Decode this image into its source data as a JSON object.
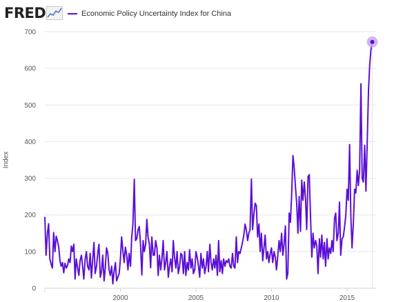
{
  "header": {
    "logo_text": "FRED",
    "logo_icon": "sparkline-icon"
  },
  "colors": {
    "series": "#5b0fd6",
    "endpoint_halo": "#c8a2f0",
    "grid": "#e6e6e6",
    "axis": "#d0d0d0"
  },
  "chart_data": {
    "type": "line",
    "title": "",
    "xlabel": "",
    "ylabel": "Index",
    "legend_position": "top-left",
    "grid": true,
    "xlim": [
      1995.0,
      2016.92
    ],
    "ylim": [
      0,
      700
    ],
    "yticks": [
      0,
      100,
      200,
      300,
      400,
      500,
      600,
      700
    ],
    "xticks": [
      2000,
      2005,
      2010,
      2015
    ],
    "series": [
      {
        "name": "Economic Policy Uncertainty Index for China",
        "values": [
          [
            1995.0,
            193
          ],
          [
            1995.08,
            90
          ],
          [
            1995.17,
            150
          ],
          [
            1995.25,
            176
          ],
          [
            1995.33,
            80
          ],
          [
            1995.42,
            65
          ],
          [
            1995.5,
            55
          ],
          [
            1995.58,
            152
          ],
          [
            1995.67,
            100
          ],
          [
            1995.75,
            142
          ],
          [
            1995.83,
            130
          ],
          [
            1995.92,
            112
          ],
          [
            1996.0,
            75
          ],
          [
            1996.08,
            60
          ],
          [
            1996.17,
            70
          ],
          [
            1996.25,
            42
          ],
          [
            1996.33,
            68
          ],
          [
            1996.42,
            55
          ],
          [
            1996.5,
            62
          ],
          [
            1996.58,
            80
          ],
          [
            1996.67,
            70
          ],
          [
            1996.75,
            115
          ],
          [
            1996.83,
            100
          ],
          [
            1996.92,
            120
          ],
          [
            1997.0,
            25
          ],
          [
            1997.08,
            80
          ],
          [
            1997.17,
            55
          ],
          [
            1997.25,
            35
          ],
          [
            1997.33,
            75
          ],
          [
            1997.42,
            90
          ],
          [
            1997.5,
            60
          ],
          [
            1997.58,
            25
          ],
          [
            1997.67,
            80
          ],
          [
            1997.75,
            100
          ],
          [
            1997.83,
            60
          ],
          [
            1997.92,
            50
          ],
          [
            1998.0,
            95
          ],
          [
            1998.08,
            28
          ],
          [
            1998.17,
            80
          ],
          [
            1998.25,
            125
          ],
          [
            1998.33,
            40
          ],
          [
            1998.42,
            60
          ],
          [
            1998.5,
            95
          ],
          [
            1998.58,
            120
          ],
          [
            1998.67,
            30
          ],
          [
            1998.75,
            45
          ],
          [
            1998.83,
            90
          ],
          [
            1998.92,
            20
          ],
          [
            1999.0,
            55
          ],
          [
            1999.08,
            110
          ],
          [
            1999.17,
            95
          ],
          [
            1999.25,
            50
          ],
          [
            1999.33,
            35
          ],
          [
            1999.42,
            60
          ],
          [
            1999.5,
            12
          ],
          [
            1999.58,
            45
          ],
          [
            1999.67,
            70
          ],
          [
            1999.75,
            20
          ],
          [
            1999.83,
            30
          ],
          [
            1999.92,
            40
          ],
          [
            2000.0,
            80
          ],
          [
            2000.08,
            140
          ],
          [
            2000.17,
            100
          ],
          [
            2000.25,
            70
          ],
          [
            2000.33,
            112
          ],
          [
            2000.42,
            90
          ],
          [
            2000.5,
            50
          ],
          [
            2000.58,
            95
          ],
          [
            2000.67,
            60
          ],
          [
            2000.75,
            140
          ],
          [
            2000.83,
            175
          ],
          [
            2000.92,
            297
          ],
          [
            2001.0,
            130
          ],
          [
            2001.08,
            135
          ],
          [
            2001.17,
            160
          ],
          [
            2001.25,
            168
          ],
          [
            2001.33,
            120
          ],
          [
            2001.42,
            36
          ],
          [
            2001.5,
            130
          ],
          [
            2001.58,
            100
          ],
          [
            2001.67,
            120
          ],
          [
            2001.75,
            188
          ],
          [
            2001.83,
            140
          ],
          [
            2001.92,
            120
          ],
          [
            2002.0,
            56
          ],
          [
            2002.08,
            140
          ],
          [
            2002.17,
            90
          ],
          [
            2002.25,
            90
          ],
          [
            2002.33,
            130
          ],
          [
            2002.42,
            110
          ],
          [
            2002.5,
            35
          ],
          [
            2002.58,
            90
          ],
          [
            2002.67,
            50
          ],
          [
            2002.75,
            80
          ],
          [
            2002.83,
            130
          ],
          [
            2002.92,
            50
          ],
          [
            2003.0,
            70
          ],
          [
            2003.08,
            100
          ],
          [
            2003.17,
            30
          ],
          [
            2003.25,
            60
          ],
          [
            2003.33,
            80
          ],
          [
            2003.42,
            45
          ],
          [
            2003.5,
            130
          ],
          [
            2003.58,
            85
          ],
          [
            2003.67,
            55
          ],
          [
            2003.75,
            100
          ],
          [
            2003.83,
            40
          ],
          [
            2003.92,
            60
          ],
          [
            2004.0,
            95
          ],
          [
            2004.08,
            90
          ],
          [
            2004.17,
            40
          ],
          [
            2004.25,
            100
          ],
          [
            2004.33,
            35
          ],
          [
            2004.42,
            70
          ],
          [
            2004.5,
            50
          ],
          [
            2004.58,
            105
          ],
          [
            2004.67,
            55
          ],
          [
            2004.75,
            80
          ],
          [
            2004.83,
            40
          ],
          [
            2004.92,
            50
          ],
          [
            2005.0,
            100
          ],
          [
            2005.08,
            85
          ],
          [
            2005.17,
            60
          ],
          [
            2005.25,
            30
          ],
          [
            2005.33,
            95
          ],
          [
            2005.42,
            55
          ],
          [
            2005.5,
            80
          ],
          [
            2005.58,
            40
          ],
          [
            2005.67,
            60
          ],
          [
            2005.75,
            100
          ],
          [
            2005.83,
            45
          ],
          [
            2005.92,
            120
          ],
          [
            2006.0,
            70
          ],
          [
            2006.08,
            50
          ],
          [
            2006.17,
            80
          ],
          [
            2006.25,
            55
          ],
          [
            2006.33,
            90
          ],
          [
            2006.42,
            35
          ],
          [
            2006.5,
            130
          ],
          [
            2006.58,
            45
          ],
          [
            2006.67,
            75
          ],
          [
            2006.75,
            40
          ],
          [
            2006.83,
            80
          ],
          [
            2006.92,
            60
          ],
          [
            2007.0,
            75
          ],
          [
            2007.08,
            70
          ],
          [
            2007.17,
            80
          ],
          [
            2007.25,
            60
          ],
          [
            2007.33,
            55
          ],
          [
            2007.42,
            95
          ],
          [
            2007.5,
            60
          ],
          [
            2007.58,
            55
          ],
          [
            2007.67,
            140
          ],
          [
            2007.75,
            70
          ],
          [
            2007.83,
            100
          ],
          [
            2007.92,
            95
          ],
          [
            2008.0,
            110
          ],
          [
            2008.08,
            125
          ],
          [
            2008.17,
            145
          ],
          [
            2008.25,
            175
          ],
          [
            2008.33,
            160
          ],
          [
            2008.42,
            130
          ],
          [
            2008.5,
            150
          ],
          [
            2008.58,
            160
          ],
          [
            2008.67,
            298
          ],
          [
            2008.75,
            160
          ],
          [
            2008.83,
            200
          ],
          [
            2008.92,
            232
          ],
          [
            2009.0,
            225
          ],
          [
            2009.08,
            140
          ],
          [
            2009.17,
            175
          ],
          [
            2009.25,
            100
          ],
          [
            2009.33,
            150
          ],
          [
            2009.42,
            75
          ],
          [
            2009.5,
            110
          ],
          [
            2009.58,
            145
          ],
          [
            2009.67,
            80
          ],
          [
            2009.75,
            100
          ],
          [
            2009.83,
            70
          ],
          [
            2009.92,
            95
          ],
          [
            2010.0,
            110
          ],
          [
            2010.08,
            70
          ],
          [
            2010.17,
            100
          ],
          [
            2010.25,
            85
          ],
          [
            2010.33,
            50
          ],
          [
            2010.42,
            90
          ],
          [
            2010.5,
            130
          ],
          [
            2010.58,
            100
          ],
          [
            2010.67,
            150
          ],
          [
            2010.75,
            90
          ],
          [
            2010.83,
            120
          ],
          [
            2010.92,
            170
          ],
          [
            2011.0,
            25
          ],
          [
            2011.08,
            40
          ],
          [
            2011.17,
            205
          ],
          [
            2011.25,
            180
          ],
          [
            2011.33,
            250
          ],
          [
            2011.42,
            362
          ],
          [
            2011.5,
            330
          ],
          [
            2011.58,
            280
          ],
          [
            2011.67,
            230
          ],
          [
            2011.75,
            150
          ],
          [
            2011.83,
            250
          ],
          [
            2011.92,
            155
          ],
          [
            2012.0,
            295
          ],
          [
            2012.08,
            240
          ],
          [
            2012.17,
            290
          ],
          [
            2012.25,
            245
          ],
          [
            2012.33,
            160
          ],
          [
            2012.42,
            305
          ],
          [
            2012.5,
            310
          ],
          [
            2012.58,
            200
          ],
          [
            2012.67,
            85
          ],
          [
            2012.75,
            150
          ],
          [
            2012.83,
            110
          ],
          [
            2012.92,
            130
          ],
          [
            2013.0,
            115
          ],
          [
            2013.08,
            40
          ],
          [
            2013.17,
            135
          ],
          [
            2013.25,
            85
          ],
          [
            2013.33,
            145
          ],
          [
            2013.42,
            80
          ],
          [
            2013.5,
            125
          ],
          [
            2013.58,
            60
          ],
          [
            2013.67,
            135
          ],
          [
            2013.75,
            80
          ],
          [
            2013.83,
            110
          ],
          [
            2013.92,
            95
          ],
          [
            2014.0,
            130
          ],
          [
            2014.08,
            100
          ],
          [
            2014.17,
            190
          ],
          [
            2014.25,
            205
          ],
          [
            2014.33,
            130
          ],
          [
            2014.42,
            150
          ],
          [
            2014.5,
            235
          ],
          [
            2014.58,
            90
          ],
          [
            2014.67,
            135
          ],
          [
            2014.75,
            140
          ],
          [
            2014.83,
            165
          ],
          [
            2014.92,
            200
          ],
          [
            2015.0,
            270
          ],
          [
            2015.08,
            240
          ],
          [
            2015.17,
            392
          ],
          [
            2015.25,
            200
          ],
          [
            2015.33,
            110
          ],
          [
            2015.42,
            180
          ],
          [
            2015.5,
            270
          ],
          [
            2015.58,
            260
          ],
          [
            2015.67,
            322
          ],
          [
            2015.75,
            280
          ],
          [
            2015.83,
            320
          ],
          [
            2015.92,
            558
          ],
          [
            2016.0,
            300
          ],
          [
            2016.08,
            290
          ],
          [
            2016.17,
            390
          ],
          [
            2016.25,
            265
          ],
          [
            2016.33,
            390
          ],
          [
            2016.42,
            540
          ],
          [
            2016.5,
            610
          ],
          [
            2016.58,
            650
          ],
          [
            2016.67,
            672
          ]
        ]
      }
    ]
  }
}
